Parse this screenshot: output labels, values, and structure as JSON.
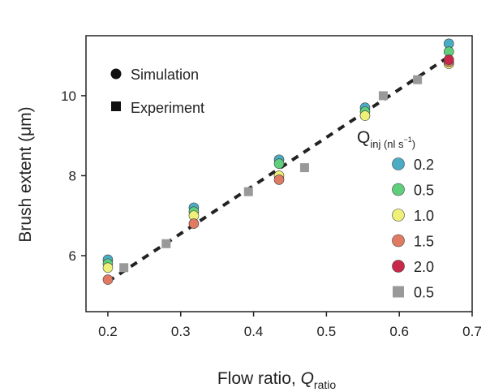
{
  "chart_data": {
    "type": "scatter",
    "xlabel": "Flow ratio, ",
    "xlabel_symbol": "Q",
    "xlabel_sub": "ratio",
    "ylabel": "Brush extent (μm)",
    "xlim": [
      0.17,
      0.7
    ],
    "ylim": [
      4.6,
      11.5
    ],
    "xticks": [
      0.2,
      0.3,
      0.4,
      0.5,
      0.6,
      0.7
    ],
    "xtick_labels": [
      "0.2",
      "0.3",
      "0.4",
      "0.5",
      "0.6",
      "0.7"
    ],
    "yticks": [
      6,
      8,
      10
    ],
    "ytick_labels": [
      "6",
      "8",
      "10"
    ],
    "marker_legend": [
      {
        "marker": "circle",
        "label": "Simulation"
      },
      {
        "marker": "square",
        "label": "Experiment"
      }
    ],
    "legend_title_symbol": "Q",
    "legend_title_sub": "inj (nl s",
    "legend_title_sup": "−1",
    "legend_title_close": ")",
    "fit_line": {
      "style": "dashed",
      "color": "#222222",
      "x": [
        0.2,
        0.67
      ],
      "y": [
        5.35,
        11.0
      ]
    },
    "series": [
      {
        "name": "0.2",
        "marker": "circle",
        "color": "#4bacc6",
        "x": [
          0.2,
          0.318,
          0.435,
          0.553,
          0.668
        ],
        "y": [
          5.9,
          7.2,
          8.4,
          9.7,
          11.3
        ]
      },
      {
        "name": "0.5",
        "marker": "circle",
        "color": "#5fcf7c",
        "x": [
          0.2,
          0.318,
          0.435,
          0.553,
          0.668
        ],
        "y": [
          5.8,
          7.1,
          8.3,
          9.6,
          11.1
        ]
      },
      {
        "name": "1.0",
        "marker": "circle",
        "color": "#eef07a",
        "x": [
          0.2,
          0.318,
          0.435,
          0.553,
          0.668
        ],
        "y": [
          5.7,
          7.0,
          8.0,
          9.5,
          10.8
        ]
      },
      {
        "name": "1.5",
        "marker": "circle",
        "color": "#e07a62",
        "x": [
          0.2,
          0.318,
          0.435,
          0.668
        ],
        "y": [
          5.4,
          6.8,
          7.9,
          10.85
        ]
      },
      {
        "name": "2.0",
        "marker": "circle",
        "color": "#c8294a",
        "x": [
          0.668
        ],
        "y": [
          10.9
        ]
      },
      {
        "name": "0.5",
        "marker": "square",
        "color": "#999999",
        "x": [
          0.222,
          0.28,
          0.393,
          0.47,
          0.578,
          0.625
        ],
        "y": [
          5.7,
          6.3,
          7.6,
          8.2,
          10.0,
          10.4
        ]
      }
    ]
  }
}
